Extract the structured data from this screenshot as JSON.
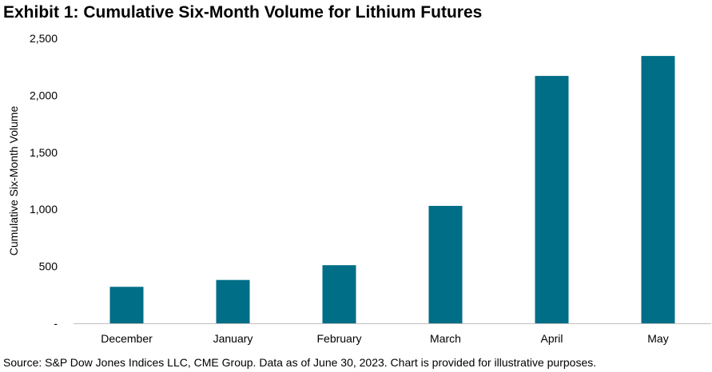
{
  "chart_data": {
    "type": "bar",
    "title": "Exhibit 1: Cumulative Six-Month Volume for Lithium Futures",
    "categories": [
      "December",
      "January",
      "February",
      "March",
      "April",
      "May"
    ],
    "series": [
      {
        "values": [
          320,
          380,
          510,
          1030,
          2170,
          2345
        ]
      }
    ],
    "xlabel": "",
    "ylabel": "Cumulative Six-Month Volume",
    "ylim": [
      0,
      2500
    ],
    "yticks": [
      0,
      500,
      1000,
      1500,
      2000,
      2500
    ],
    "ytick_labels": [
      "-",
      "500",
      "1,000",
      "1,500",
      "2,000",
      "2,500"
    ],
    "grid": false,
    "legend": "none",
    "bar_color": "#006E87",
    "axis_color": "#BFBFBF"
  },
  "footer": {
    "source": "Source: S&P Dow Jones Indices LLC, CME Group. Data as of June 30, 2023. Chart is provided for illustrative purposes."
  }
}
